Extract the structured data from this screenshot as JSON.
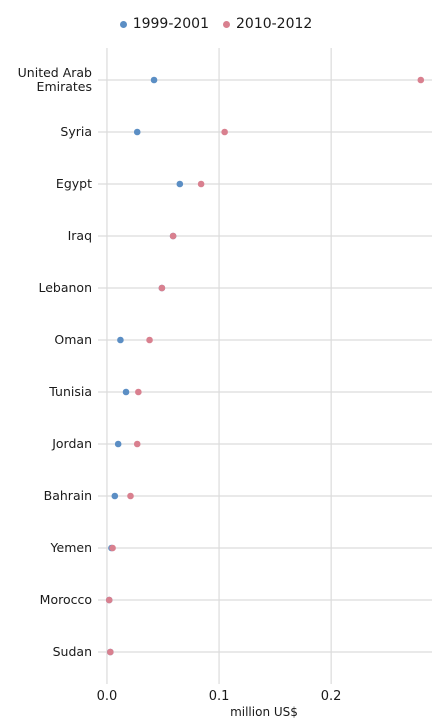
{
  "chart_data": {
    "type": "scatter",
    "title": "",
    "xlabel": "million US$",
    "ylabel": "",
    "xlim": [
      -0.008,
      0.29
    ],
    "x_ticks": [
      0.0,
      0.1,
      0.2
    ],
    "x_tick_labels": [
      "0.0",
      "0.1",
      "0.2"
    ],
    "grid": true,
    "legend_position": "top",
    "categories": [
      "United Arab\nEmirates",
      "Syria",
      "Egypt",
      "Iraq",
      "Lebanon",
      "Oman",
      "Tunisia",
      "Jordan",
      "Bahrain",
      "Yemen",
      "Morocco",
      "Sudan"
    ],
    "series": [
      {
        "name": "1999-2001",
        "color": "#5b8ec4",
        "values": [
          0.042,
          0.027,
          0.065,
          0.059,
          0.049,
          0.012,
          0.017,
          0.01,
          0.007,
          0.004,
          0.002,
          0.003
        ]
      },
      {
        "name": "2010-2012",
        "color": "#d9808f",
        "values": [
          0.28,
          0.105,
          0.084,
          0.059,
          0.049,
          0.038,
          0.028,
          0.027,
          0.021,
          0.005,
          0.002,
          0.003
        ]
      }
    ]
  }
}
